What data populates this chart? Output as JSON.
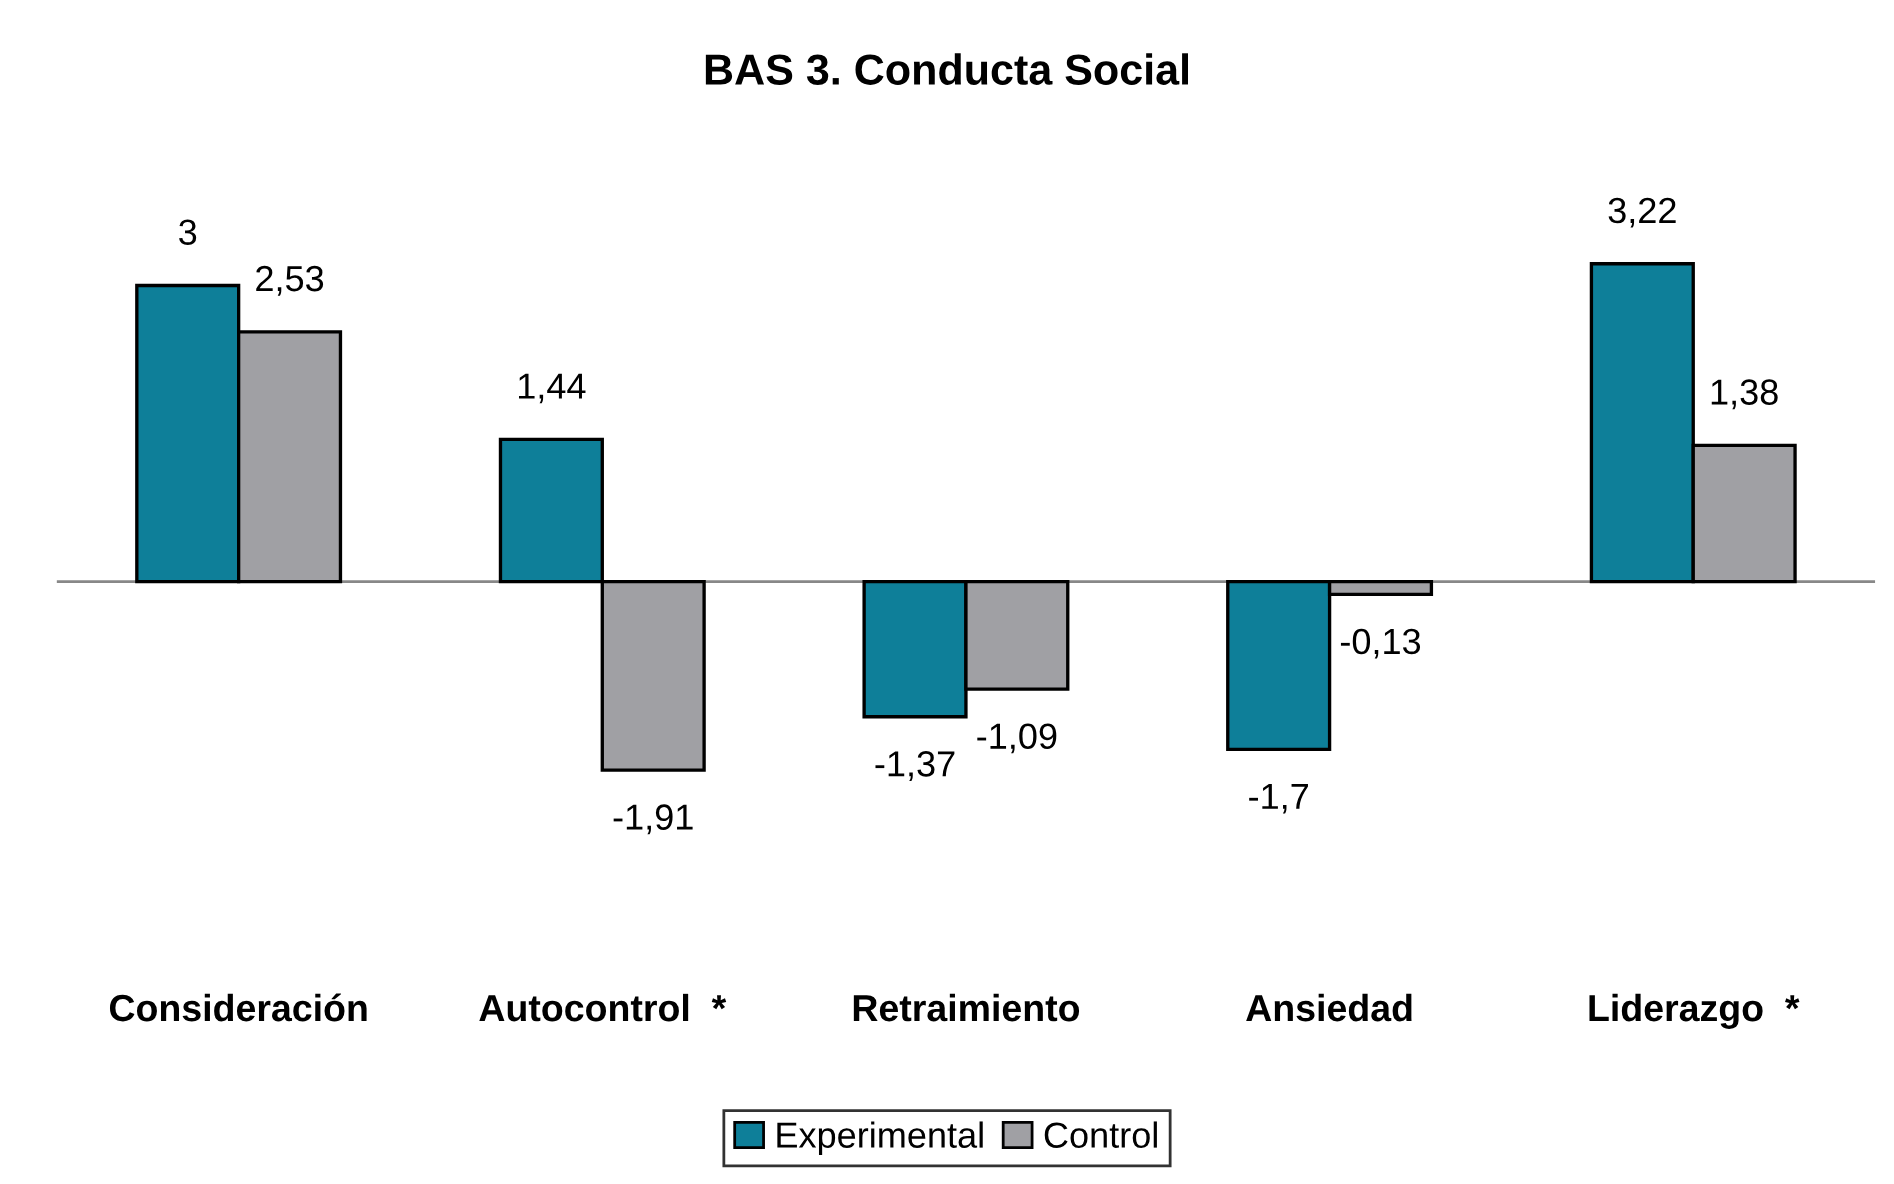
{
  "chart_data": {
    "type": "bar",
    "title": "BAS 3. Conducta Social",
    "categories": [
      "Consideración",
      "Autocontrol  *",
      "Retraimiento",
      "Ansiedad",
      "Liderazgo  *"
    ],
    "series": [
      {
        "name": "Experimental",
        "color": "#0e7f99",
        "values": [
          3,
          1.44,
          -1.37,
          -1.7,
          3.22
        ],
        "value_labels": [
          "3",
          "1,44",
          "-1,37",
          "-1,7",
          "3,22"
        ]
      },
      {
        "name": "Control",
        "color": "#a0a0a4",
        "values": [
          2.53,
          -1.91,
          -1.09,
          -0.13,
          1.38
        ],
        "value_labels": [
          "2,53",
          "-1,91",
          "-1,09",
          "-0,13",
          "1,38"
        ]
      }
    ],
    "legend": "bottom",
    "grid": false
  }
}
